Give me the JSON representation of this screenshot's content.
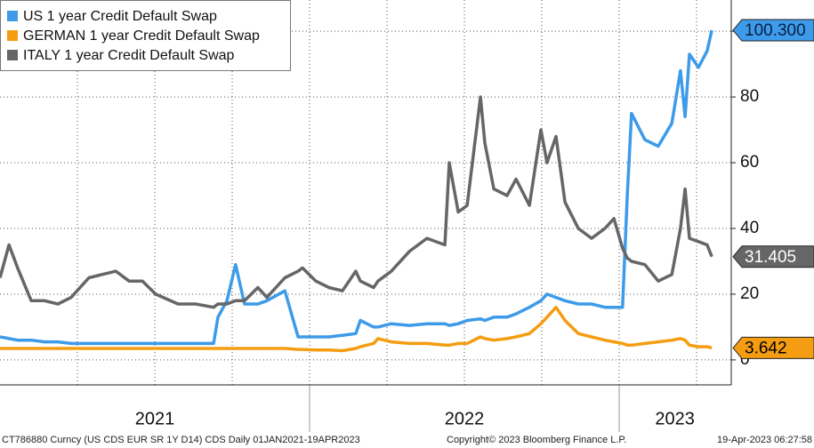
{
  "chart_data": {
    "type": "line",
    "x": [
      2021.0,
      2021.029,
      2021.057,
      2021.101,
      2021.144,
      2021.187,
      2021.23,
      2021.287,
      2021.33,
      2021.374,
      2021.417,
      2021.46,
      2021.503,
      2021.575,
      2021.632,
      2021.69,
      2021.704,
      2021.733,
      2021.761,
      2021.79,
      2021.833,
      2021.862,
      2021.92,
      2021.963,
      2021.977,
      2022.02,
      2022.063,
      2022.106,
      2022.149,
      2022.164,
      2022.207,
      2022.221,
      2022.264,
      2022.322,
      2022.379,
      2022.437,
      2022.451,
      2022.48,
      2022.509,
      2022.552,
      2022.566,
      2022.595,
      2022.638,
      2022.667,
      2022.71,
      2022.747,
      2022.767,
      2022.796,
      2022.825,
      2022.868,
      2022.911,
      2022.954,
      2022.983,
      2023.011,
      2023.026,
      2023.04,
      2023.083,
      2023.126,
      2023.17,
      2023.198,
      2023.213,
      2023.227,
      2023.256,
      2023.284,
      2023.299
    ],
    "series": [
      {
        "name": "US 1 year Credit Default Swap",
        "color": "#3d9be9",
        "label_text_color": "#0b1f44",
        "values": [
          7,
          6.5,
          6,
          6,
          5.5,
          5.5,
          5,
          5,
          5,
          5,
          5,
          5,
          5,
          5,
          5,
          5,
          13,
          18,
          29,
          17,
          17,
          18,
          21,
          7,
          7,
          7,
          7,
          7.5,
          8,
          12,
          10,
          10,
          11,
          10.5,
          11,
          11,
          10.5,
          11,
          12,
          12.5,
          12,
          13,
          13,
          14,
          16,
          18,
          20,
          19,
          18,
          17,
          17,
          16,
          16,
          16,
          50,
          75,
          67,
          65,
          72,
          88,
          74,
          93,
          89,
          94,
          100.3
        ],
        "value_labels": {
          "64": "100.300"
        }
      },
      {
        "name": "GERMAN 1 year Credit Default Swap",
        "color": "#f59d12",
        "label_text_color": "#000000",
        "values": [
          3.5,
          3.5,
          3.5,
          3.5,
          3.5,
          3.5,
          3.5,
          3.5,
          3.5,
          3.5,
          3.5,
          3.5,
          3.5,
          3.5,
          3.5,
          3.5,
          3.5,
          3.5,
          3.5,
          3.5,
          3.5,
          3.5,
          3.5,
          3.2,
          3.2,
          3,
          3,
          2.8,
          3.5,
          4,
          5,
          6.5,
          5.5,
          5,
          5,
          4.5,
          4.5,
          5,
          5,
          7,
          6.5,
          6,
          6.5,
          7,
          8,
          11,
          13,
          16,
          12,
          8,
          7,
          6,
          5.5,
          5,
          4.5,
          4.5,
          5,
          5.5,
          6,
          6.5,
          6,
          4.5,
          4,
          4,
          3.642
        ],
        "value_labels": {
          "64": "3.642"
        }
      },
      {
        "name": "ITALY 1 year Credit Default Swap",
        "color": "#666666",
        "label_text_color": "#ffffff",
        "values": [
          25,
          35,
          28,
          18,
          18,
          17,
          19,
          25,
          26,
          27,
          24,
          24,
          20,
          17,
          17,
          16,
          17,
          17,
          18,
          18,
          22,
          19,
          25,
          27,
          28,
          24,
          22,
          21,
          27,
          24,
          22,
          24,
          27,
          33,
          37,
          35,
          60,
          45,
          47,
          80,
          66,
          52,
          50,
          55,
          47,
          70,
          60,
          68,
          48,
          40,
          37,
          40,
          43,
          34,
          31,
          30,
          29,
          24,
          26,
          40,
          52,
          37,
          36,
          35,
          31.405
        ],
        "value_labels": {
          "64": "31.405"
        }
      }
    ],
    "xlim": [
      2021,
      2023.362
    ],
    "ylim": [
      -7.6,
      109.5
    ],
    "yticks": [
      0,
      20,
      40,
      60,
      80,
      100
    ],
    "xticks": [
      {
        "value": 2021.5,
        "label": "2021"
      },
      {
        "value": 2022.5,
        "label": "2022"
      },
      {
        "value": 2023.18,
        "label": "2023"
      }
    ],
    "xseparators": [
      2022,
      2023
    ],
    "xgrid": [
      2021.25,
      2021.5,
      2021.75,
      2022,
      2022.25,
      2022.5,
      2022.75,
      2023,
      2023.25
    ],
    "grid": true,
    "legend": "top-left",
    "footer": {
      "left": "CT786880 Curncy (US CDS EUR SR 1Y D14) CDS  Daily 01JAN2021-19APR2023",
      "center": "Copyright© 2023 Bloomberg Finance L.P.",
      "right": "19-Apr-2023 06:27:58"
    }
  }
}
